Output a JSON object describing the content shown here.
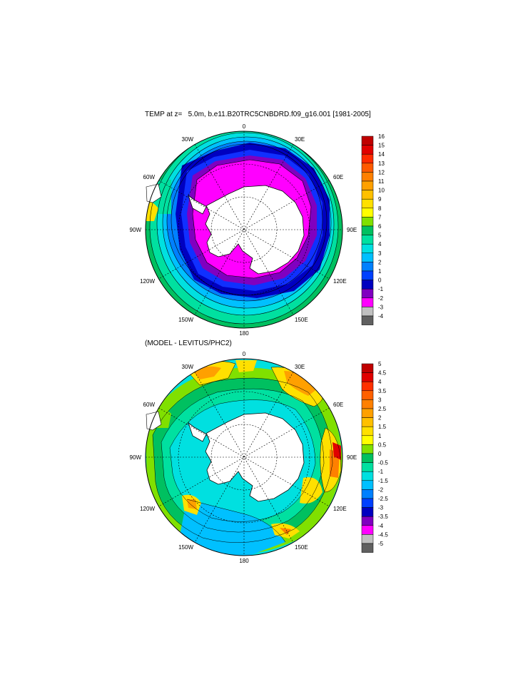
{
  "top_panel": {
    "title": "TEMP at z=   5.0m, b.e11.B20TRC5CNBDRD.f09_g16.001 [1981-2005]",
    "longitude_labels": {
      "n": "0",
      "ne": "30E",
      "ene": "60E",
      "e": "90E",
      "ese": "120E",
      "sse": "150E",
      "s": "180",
      "ssw": "150W",
      "wsw": "120W",
      "w": "90W",
      "wnw": "60W",
      "nnw": "30W"
    },
    "colorbar": {
      "levels": [
        "16",
        "15",
        "14",
        "13",
        "12",
        "11",
        "10",
        "9",
        "8",
        "7",
        "6",
        "5",
        "4",
        "3",
        "2",
        "1",
        "0",
        "-1",
        "-2",
        "-3",
        "-4"
      ],
      "colors": [
        "#c00000",
        "#e00000",
        "#ff2a00",
        "#ff5a00",
        "#ff8000",
        "#ffa000",
        "#ffc000",
        "#ffe000",
        "#ffff00",
        "#80e000",
        "#00c060",
        "#00e0a0",
        "#00e0e0",
        "#00c0ff",
        "#0080ff",
        "#0040ff",
        "#0000c0",
        "#8000c0",
        "#ff00ff",
        "#c0c0c0",
        "#606060"
      ]
    }
  },
  "bottom_panel": {
    "title": "(MODEL - LEVITUS/PHC2)",
    "longitude_labels": {
      "n": "0",
      "ne": "30E",
      "ene": "60E",
      "e": "90E",
      "ese": "120E",
      "sse": "150E",
      "s": "180",
      "ssw": "150W",
      "wsw": "120W",
      "w": "90W",
      "wnw": "60W",
      "nnw": "30W"
    },
    "colorbar": {
      "levels": [
        "5",
        "4.5",
        "4",
        "3.5",
        "3",
        "2.5",
        "2",
        "1.5",
        "1",
        "0.5",
        "0",
        "-0.5",
        "-1",
        "-1.5",
        "-2",
        "-2.5",
        "-3",
        "-3.5",
        "-4",
        "-4.5",
        "-5"
      ],
      "colors": [
        "#c00000",
        "#e00000",
        "#ff3000",
        "#ff6000",
        "#ff8000",
        "#ffa000",
        "#ffc000",
        "#ffe000",
        "#ffff00",
        "#80e000",
        "#00c060",
        "#00e0a0",
        "#00e0e0",
        "#00c0ff",
        "#0080ff",
        "#0040ff",
        "#0000c0",
        "#8000c0",
        "#ff00ff",
        "#c0c0c0",
        "#606060"
      ]
    }
  },
  "colors": {
    "land": "#ffffff",
    "coastline": "#000000",
    "grid": "#000000"
  }
}
